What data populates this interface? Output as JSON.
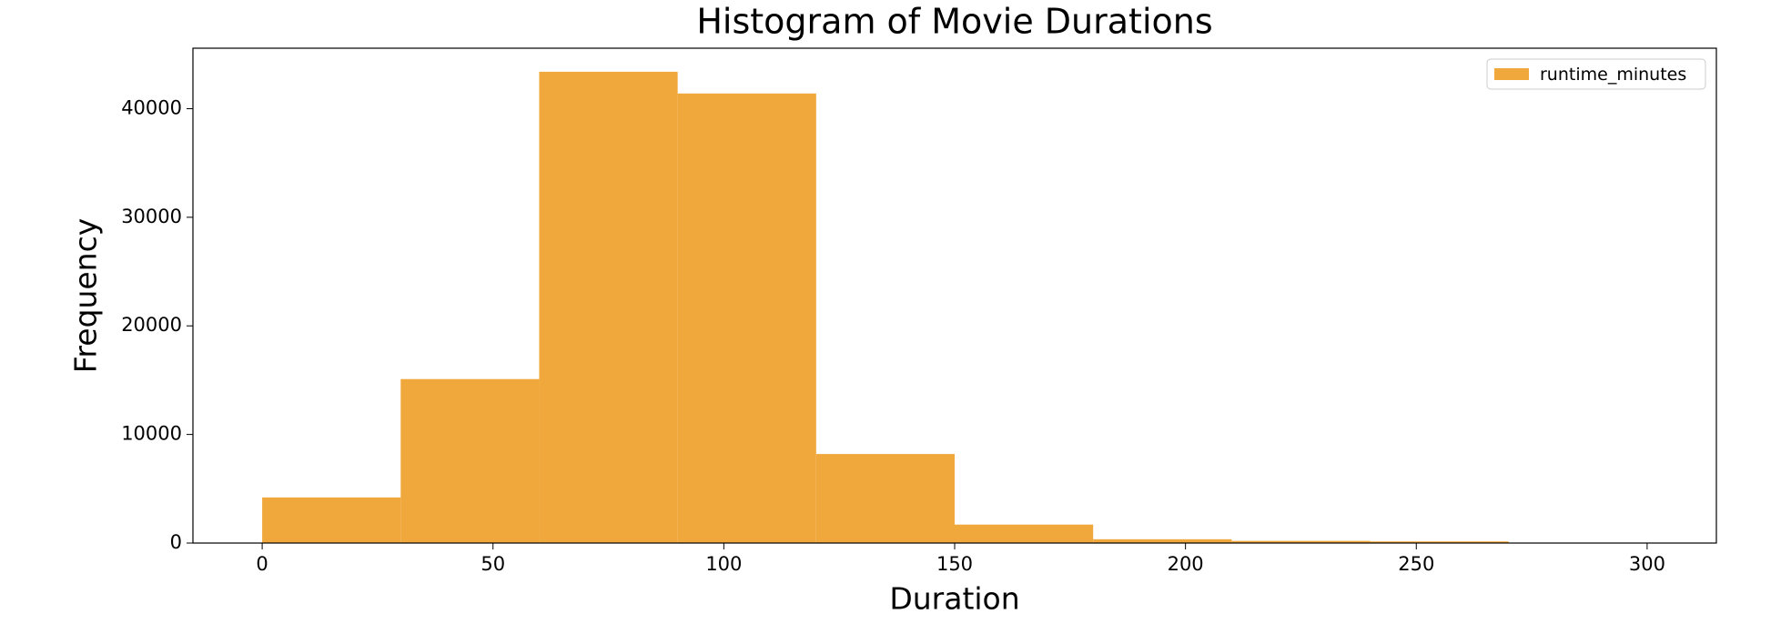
{
  "chart_data": {
    "type": "histogram",
    "title": "Histogram of Movie Durations",
    "x_label": "Duration",
    "y_label": "Frequency",
    "bins": [
      0,
      30,
      60,
      90,
      120,
      150,
      180,
      210,
      240,
      270,
      300
    ],
    "series": [
      {
        "name": "runtime_minutes",
        "color": "#f0a83c",
        "values": [
          4200,
          15100,
          43400,
          41400,
          8200,
          1700,
          350,
          200,
          150,
          30
        ]
      }
    ],
    "xlim": [
      -15,
      315
    ],
    "xticks": [
      0,
      50,
      100,
      150,
      200,
      250,
      300
    ],
    "ylim": [
      0,
      45570
    ],
    "yticks": [
      0,
      10000,
      20000,
      30000,
      40000
    ],
    "legend": "upper right",
    "grid": false
  }
}
